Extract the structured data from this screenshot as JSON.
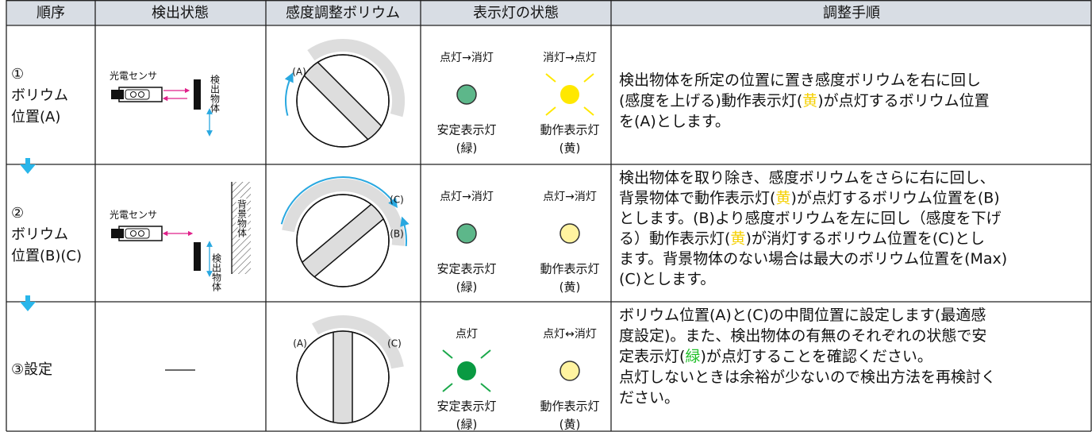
{
  "table": {
    "headers": [
      "順序",
      "検出状態",
      "感度調整ボリウム",
      "表示灯の状態",
      "調整手順"
    ],
    "rows": [
      {
        "order": [
          "①",
          "ボリウム",
          "位置(A)"
        ],
        "detection": {
          "sensor": "光電センサ",
          "object": "検出物体"
        },
        "volume": [
          "(A)"
        ],
        "indicators": [
          {
            "status": "点灯→消灯",
            "name": "安定表示灯",
            "color": "(緑)"
          },
          {
            "status": "消灯→点灯",
            "name": "動作表示灯",
            "color": "(黄)"
          }
        ],
        "procedure": [
          [
            "検出物体を所定の位置に置き感度ボリウムを右に回し"
          ],
          [
            "(感度を上げる)動作表示灯(",
            {
              "text": "黄",
              "color": "#f5d000"
            },
            ")が点灯するボリウム位置"
          ],
          [
            "を(A)とします。"
          ]
        ]
      },
      {
        "order": [
          "②",
          "ボリウム",
          "位置(B)(C)"
        ],
        "detection": {
          "sensor": "光電センサ",
          "object": "検出物体",
          "background": "背景物体"
        },
        "volume": [
          "(C)",
          "(B)"
        ],
        "indicators": [
          {
            "status": "点灯→消灯",
            "name": "安定表示灯",
            "color": "(緑)"
          },
          {
            "status": "点灯→消灯",
            "name": "動作表示灯",
            "color": "(黄)"
          }
        ],
        "procedure": [
          [
            "検出物体を取り除き、感度ボリウムをさらに右に回し、"
          ],
          [
            "背景物体で動作表示灯(",
            {
              "text": "黄",
              "color": "#f5d000"
            },
            ")が点灯するボリウム位置を(B)"
          ],
          [
            "とします。(B)より感度ボリウムを左に回し（感度を下げ"
          ],
          [
            "る）動作表示灯(",
            {
              "text": "黄",
              "color": "#f5d000"
            },
            ")が消灯するボリウム位置を(C)とし"
          ],
          [
            "ます。背景物体のない場合は最大のボリウム位置を(Max)"
          ],
          [
            "(C)とします。"
          ]
        ]
      },
      {
        "order": [
          "③設定"
        ],
        "volume": [
          "(A)",
          "(C)"
        ],
        "indicators": [
          {
            "status": "点灯",
            "name": "安定表示灯",
            "color": "(緑)"
          },
          {
            "status": "点灯↔消灯",
            "name": "動作表示灯",
            "color": "(黄)"
          }
        ],
        "procedure": [
          [
            "ボリウム位置(A)と(C)の中間位置に設定します(最適感"
          ],
          [
            "度設定)。また、検出物体の有無のそれぞれの状態で安"
          ],
          [
            "定表示灯(",
            {
              "text": "緑",
              "color": "#22c02a"
            },
            ")が点灯することを確認ください。"
          ],
          [
            "点灯しないときは余裕が少ないので検出方法を再検討く"
          ],
          [
            "ださい。"
          ]
        ]
      }
    ]
  }
}
